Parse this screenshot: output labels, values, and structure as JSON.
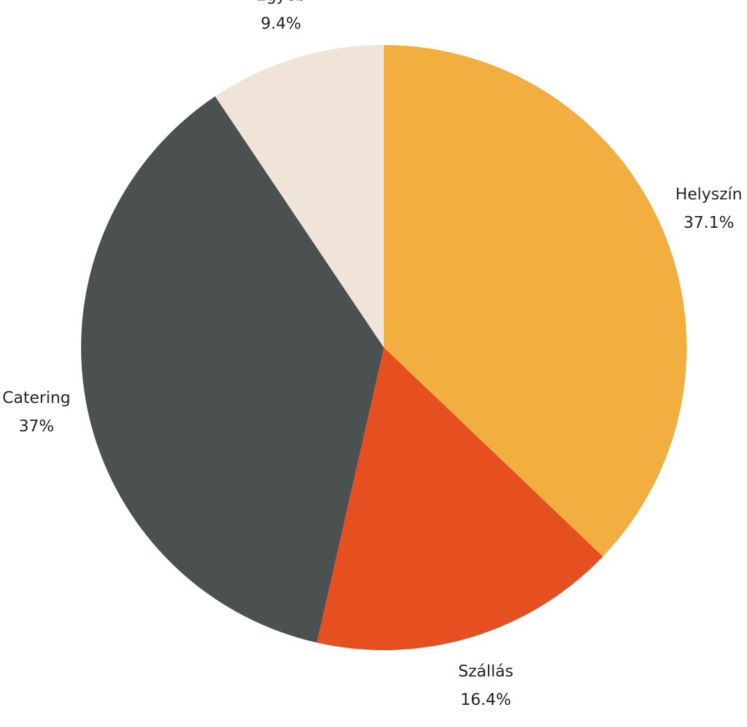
{
  "chart_data": {
    "type": "pie",
    "categories": [
      "Helyszín",
      "Szállás",
      "Catering",
      "Egyéb"
    ],
    "values": [
      37.1,
      16.4,
      37,
      9.4
    ],
    "value_labels": [
      "37.1%",
      "16.4%",
      "37%",
      "9.4%"
    ],
    "colors": [
      "#f3ae40",
      "#e64f1f",
      "#4a5150",
      "#efe4d7"
    ]
  }
}
